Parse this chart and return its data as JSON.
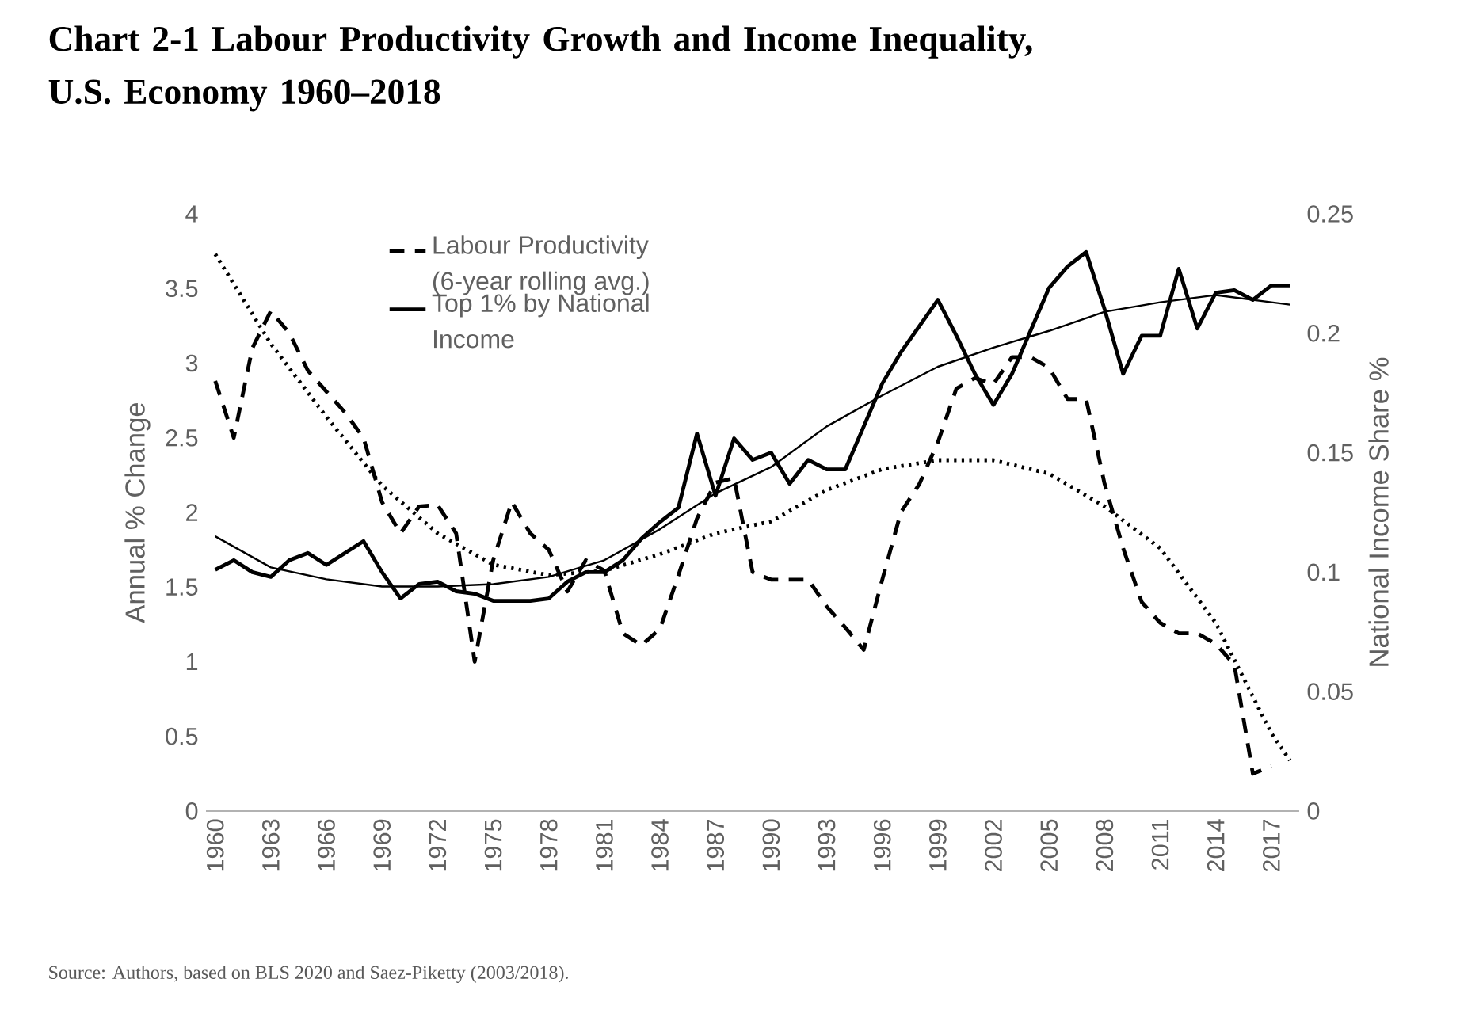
{
  "chart_data": {
    "type": "line",
    "title": "Chart 2-1 Labour Productivity Growth and Income Inequality, U.S. Economy 1960–2018",
    "ylabel": "Annual % Change",
    "y2label": "National Income Share %",
    "annotations": [
      "Source: Authors, based on BLS 2020 and Saez-Piketty (2003/2018)."
    ],
    "x": [
      1960,
      1961,
      1962,
      1963,
      1964,
      1965,
      1966,
      1967,
      1968,
      1969,
      1970,
      1971,
      1972,
      1973,
      1974,
      1975,
      1976,
      1977,
      1978,
      1979,
      1980,
      1981,
      1982,
      1983,
      1984,
      1985,
      1986,
      1987,
      1988,
      1989,
      1990,
      1991,
      1992,
      1993,
      1994,
      1995,
      1996,
      1997,
      1998,
      1999,
      2000,
      2001,
      2002,
      2003,
      2004,
      2005,
      2006,
      2007,
      2008,
      2009,
      2010,
      2011,
      2012,
      2013,
      2014,
      2015,
      2016,
      2017,
      2018
    ],
    "xlim": [
      1959.5,
      2018.5
    ],
    "xticks": [
      1960,
      1963,
      1966,
      1969,
      1972,
      1975,
      1978,
      1981,
      1984,
      1987,
      1990,
      1993,
      1996,
      1999,
      2002,
      2005,
      2008,
      2011,
      2014,
      2017
    ],
    "ylim": [
      0,
      4
    ],
    "yticks": [
      0,
      0.5,
      1,
      1.5,
      2,
      2.5,
      3,
      3.5,
      4
    ],
    "y2lim": [
      0,
      0.25
    ],
    "y2ticks": [
      0,
      0.05,
      0.1,
      0.15,
      0.2,
      0.25
    ],
    "grid": false,
    "legend": "top left",
    "series": [
      {
        "name": "Labour Productivity (6-year rolling avg.)",
        "color": "#000000",
        "line_style": "dashed",
        "values": [
          2.88,
          2.5,
          3.1,
          3.35,
          3.2,
          2.95,
          2.81,
          2.67,
          2.5,
          2.07,
          1.86,
          2.04,
          2.05,
          1.86,
          1.0,
          1.68,
          2.07,
          1.86,
          1.75,
          1.47,
          1.68,
          1.61,
          1.19,
          1.11,
          1.22,
          1.58,
          1.96,
          2.2,
          2.23,
          1.6,
          1.55,
          1.55,
          1.55,
          1.37,
          1.23,
          1.08,
          1.55,
          2.0,
          2.19,
          2.47,
          2.83,
          2.9,
          2.86,
          3.04,
          3.04,
          2.97,
          2.76,
          2.76,
          2.19,
          1.76,
          1.4,
          1.26,
          1.19,
          1.19,
          1.12,
          0.98,
          0.25,
          0.3,
          null
        ]
      },
      {
        "name": "Top 1% by National Income",
        "color": "#000000",
        "line_style": "solid",
        "axis": "y2",
        "values": [
          0.101,
          0.105,
          0.1,
          0.098,
          0.105,
          0.108,
          0.103,
          0.108,
          0.113,
          0.1,
          0.089,
          0.095,
          0.096,
          0.092,
          0.091,
          0.088,
          0.088,
          0.088,
          0.089,
          0.096,
          0.1,
          0.1,
          0.105,
          0.114,
          0.121,
          0.127,
          0.158,
          0.132,
          0.156,
          0.147,
          0.15,
          0.137,
          0.147,
          0.143,
          0.143,
          0.161,
          0.179,
          0.192,
          0.203,
          0.214,
          0.199,
          0.183,
          0.17,
          0.183,
          0.201,
          0.219,
          0.228,
          0.234,
          0.21,
          0.183,
          0.199,
          0.199,
          0.227,
          0.202,
          0.217,
          0.218,
          0.214,
          0.22,
          0.22
        ]
      },
      {
        "type": "line",
        "color": "#000000",
        "line_style": "dotted",
        "x": [
          1960,
          1963,
          1966,
          1969,
          1972,
          1975,
          1978,
          1981,
          1984,
          1987,
          1990,
          1993,
          1996,
          1999,
          2002,
          2005,
          2008,
          2011,
          2014,
          2017,
          2018
        ],
        "values": [
          3.73,
          3.13,
          2.64,
          2.18,
          1.86,
          1.65,
          1.58,
          1.61,
          1.72,
          1.86,
          1.94,
          2.15,
          2.29,
          2.35,
          2.35,
          2.26,
          2.04,
          1.76,
          1.26,
          0.52,
          0.34
        ]
      },
      {
        "type": "line",
        "color": "#000000",
        "line_style": "solid",
        "axis": "y2",
        "x": [
          1960,
          1963,
          1966,
          1969,
          1972,
          1975,
          1978,
          1981,
          1984,
          1987,
          1990,
          1993,
          1996,
          1999,
          2002,
          2005,
          2008,
          2011,
          2014,
          2017,
          2018
        ],
        "values": [
          0.115,
          0.102,
          0.097,
          0.094,
          0.094,
          0.095,
          0.098,
          0.105,
          0.118,
          0.133,
          0.144,
          0.161,
          0.174,
          0.186,
          0.194,
          0.201,
          0.209,
          0.213,
          0.216,
          0.213,
          0.212
        ]
      }
    ]
  }
}
